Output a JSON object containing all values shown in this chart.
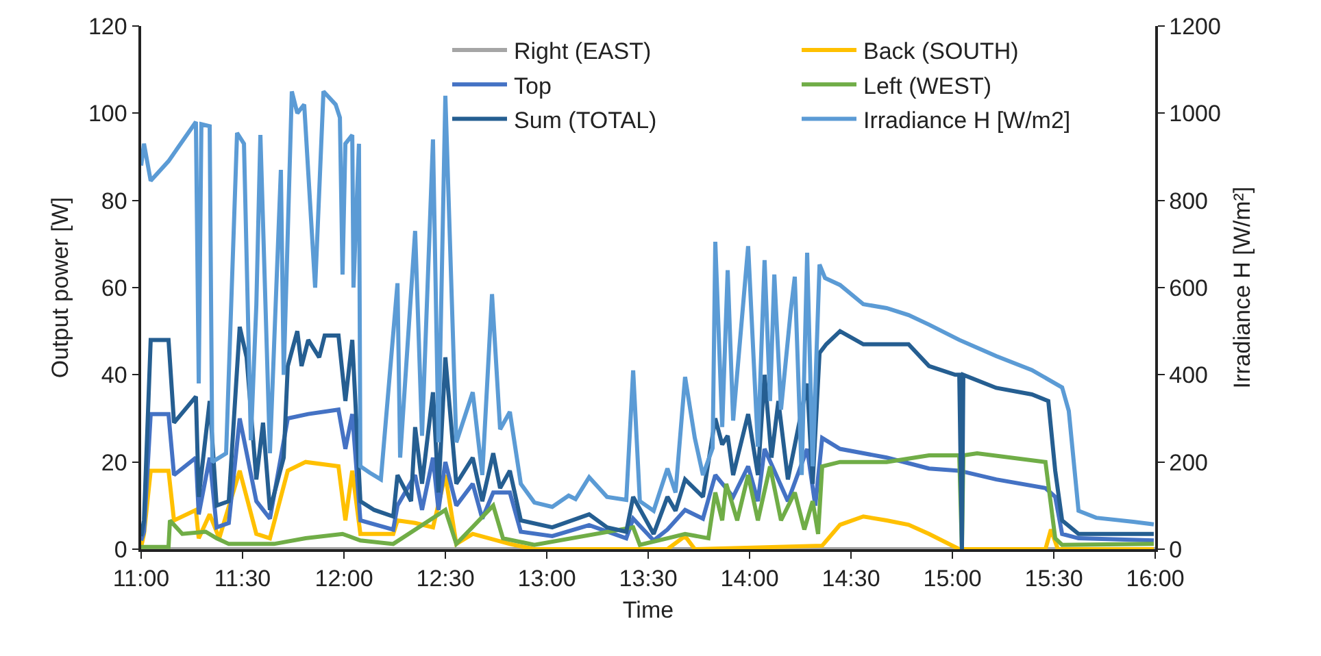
{
  "chart_data": {
    "type": "line",
    "xlabel": "Time",
    "ylabel": "Output power [W]",
    "y2label": "Irradiance H [W/m²]",
    "xlim": [
      11,
      16
    ],
    "xticks": [
      {
        "value": 11,
        "label": "11:00"
      },
      {
        "value": 11.5,
        "label": "11:30"
      },
      {
        "value": 12,
        "label": "12:00"
      },
      {
        "value": 12.5,
        "label": "12:30"
      },
      {
        "value": 13,
        "label": "13:00"
      },
      {
        "value": 13.5,
        "label": "13:30"
      },
      {
        "value": 14,
        "label": "14:00"
      },
      {
        "value": 14.5,
        "label": "14:30"
      },
      {
        "value": 15,
        "label": "15:00"
      },
      {
        "value": 15.5,
        "label": "15:30"
      },
      {
        "value": 16,
        "label": "16:00"
      }
    ],
    "ylim": [
      0,
      120
    ],
    "yticks": [
      0,
      20,
      40,
      60,
      80,
      100,
      120
    ],
    "y2lim": [
      0,
      1200
    ],
    "y2ticks": [
      0,
      200,
      400,
      600,
      800,
      1000,
      1200
    ],
    "grid": false,
    "legend": "top",
    "marker": "none",
    "line_style": "solid",
    "series": [
      {
        "name": "Right (EAST)",
        "color": "#a5a5a5",
        "x": [
          11,
          12,
          13,
          14,
          15,
          16
        ],
        "values": [
          0,
          0,
          0,
          0,
          0,
          0
        ]
      },
      {
        "name": "Back (SOUTH)",
        "color": "#ffc000",
        "x": [
          11.0,
          11.014,
          11.047,
          11.135,
          11.162,
          11.27,
          11.284,
          11.338,
          11.385,
          11.486,
          11.568,
          11.635,
          11.723,
          11.811,
          11.973,
          12.007,
          12.041,
          12.081,
          12.243,
          12.264,
          12.351,
          12.439,
          12.5,
          12.554,
          12.635,
          12.818,
          12.939,
          13.595,
          13.682,
          13.73,
          14.358,
          14.446,
          14.561,
          14.676,
          14.784,
          14.885,
          15.034,
          15.459,
          15.486,
          15.52,
          15.993
        ],
        "values": [
          0.5,
          3.5,
          18,
          18,
          6.6,
          9,
          2.5,
          8,
          2.5,
          18,
          3.5,
          2.5,
          18,
          20,
          19,
          6.6,
          18,
          3.5,
          3.5,
          6.6,
          6,
          5,
          17,
          1.2,
          3.5,
          1.2,
          0,
          0,
          3,
          0,
          0.8,
          5.6,
          7.5,
          6.6,
          5.6,
          3.5,
          0,
          0,
          4.5,
          0,
          0
        ]
      },
      {
        "name": "Top",
        "color": "#4472c4",
        "x": [
          11.0,
          11.014,
          11.047,
          11.135,
          11.162,
          11.27,
          11.284,
          11.338,
          11.372,
          11.432,
          11.486,
          11.568,
          11.635,
          11.723,
          11.824,
          11.973,
          12.007,
          12.041,
          12.081,
          12.243,
          12.264,
          12.351,
          12.385,
          12.439,
          12.466,
          12.5,
          12.554,
          12.635,
          12.682,
          12.736,
          12.818,
          12.872,
          13.027,
          13.209,
          13.392,
          13.426,
          13.527,
          13.595,
          13.682,
          13.77,
          13.831,
          13.919,
          13.993,
          14.041,
          14.074,
          14.189,
          14.284,
          14.324,
          14.358,
          14.446,
          14.676,
          14.885,
          15.034,
          15.216,
          15.459,
          15.507,
          15.541,
          15.622,
          15.993
        ],
        "values": [
          2,
          4,
          31,
          31,
          17,
          21,
          8,
          21,
          5,
          6,
          30,
          11,
          7,
          30,
          31,
          32,
          23,
          31,
          6.6,
          4.5,
          10,
          17,
          9,
          21,
          9,
          20,
          10,
          15,
          7,
          13,
          13,
          4,
          3,
          5.5,
          2.5,
          7,
          2,
          4.5,
          9,
          7,
          17,
          12,
          19,
          11,
          23,
          11,
          23,
          10,
          25.5,
          23,
          21,
          18.5,
          18,
          16,
          14,
          12,
          3.5,
          2.5,
          2
        ]
      },
      {
        "name": "Left (WEST)",
        "color": "#70ad47",
        "x": [
          11.0,
          11.135,
          11.142,
          11.203,
          11.318,
          11.372,
          11.432,
          11.655,
          11.811,
          11.993,
          12.081,
          12.243,
          12.5,
          12.554,
          12.736,
          12.784,
          12.939,
          13.426,
          13.459,
          13.595,
          13.682,
          13.797,
          13.831,
          13.865,
          13.885,
          13.939,
          13.993,
          14.041,
          14.101,
          14.155,
          14.223,
          14.27,
          14.311,
          14.338,
          14.358,
          14.446,
          14.676,
          14.885,
          15.034,
          15.047,
          15.054,
          15.122,
          15.459,
          15.507,
          15.541,
          15.993
        ],
        "values": [
          0.5,
          0.5,
          6.6,
          3.5,
          4,
          2.5,
          1.2,
          1.2,
          2.5,
          3.5,
          2,
          1.2,
          9,
          1.2,
          10,
          2.5,
          1,
          5,
          1,
          2.5,
          3.5,
          2.5,
          13,
          6.6,
          15,
          6.6,
          17,
          6.6,
          19,
          6.6,
          13,
          4.5,
          11,
          3.5,
          19,
          20,
          20,
          21.5,
          21.5,
          0,
          21.5,
          22,
          20,
          2.5,
          1,
          1.2
        ]
      },
      {
        "name": "Sum (TOTAL)",
        "color": "#255e91",
        "x": [
          11.0,
          11.014,
          11.047,
          11.135,
          11.162,
          11.27,
          11.284,
          11.338,
          11.372,
          11.432,
          11.486,
          11.52,
          11.568,
          11.601,
          11.635,
          11.703,
          11.723,
          11.77,
          11.791,
          11.824,
          11.878,
          11.905,
          11.973,
          12.007,
          12.041,
          12.081,
          12.149,
          12.243,
          12.264,
          12.331,
          12.351,
          12.385,
          12.439,
          12.466,
          12.5,
          12.554,
          12.635,
          12.682,
          12.736,
          12.77,
          12.818,
          12.872,
          13.027,
          13.209,
          13.297,
          13.392,
          13.426,
          13.527,
          13.595,
          13.635,
          13.682,
          13.77,
          13.831,
          13.865,
          13.892,
          13.919,
          13.993,
          14.041,
          14.074,
          14.108,
          14.142,
          14.189,
          14.284,
          14.311,
          14.345,
          14.378,
          14.446,
          14.561,
          14.676,
          14.784,
          14.885,
          15.014,
          15.034,
          15.047,
          15.054,
          15.216,
          15.392,
          15.473,
          15.507,
          15.541,
          15.622,
          15.993
        ],
        "values": [
          3,
          6.6,
          48,
          48,
          29,
          35,
          12,
          34,
          10,
          11,
          51,
          44,
          16,
          29,
          9,
          21,
          42,
          50,
          42,
          48,
          44,
          49,
          49,
          34,
          48,
          11,
          9,
          7.5,
          17,
          11,
          28,
          15,
          36,
          13,
          44,
          15,
          21,
          11,
          22,
          14,
          18,
          6.6,
          5,
          8,
          5,
          4,
          12,
          3.5,
          12,
          8.8,
          16,
          12,
          30,
          24,
          26,
          17,
          31,
          17,
          40,
          21,
          34,
          16,
          38,
          15,
          45,
          47,
          50,
          47,
          47,
          47,
          42,
          40,
          40,
          0,
          40,
          37,
          35.5,
          34,
          18,
          6.6,
          3.5,
          3.5
        ]
      },
      {
        "name": "Irradiance H [W/m2]",
        "color": "#5b9bd5",
        "axis": "y2",
        "x": [
          11.0,
          11.014,
          11.047,
          11.135,
          11.27,
          11.284,
          11.297,
          11.338,
          11.351,
          11.419,
          11.473,
          11.507,
          11.541,
          11.568,
          11.588,
          11.635,
          11.689,
          11.703,
          11.743,
          11.77,
          11.804,
          11.858,
          11.899,
          11.959,
          11.98,
          11.993,
          12.007,
          12.041,
          12.047,
          12.074,
          12.081,
          12.128,
          12.182,
          12.264,
          12.277,
          12.351,
          12.385,
          12.439,
          12.466,
          12.5,
          12.554,
          12.635,
          12.682,
          12.73,
          12.77,
          12.818,
          12.872,
          12.939,
          13.027,
          13.108,
          13.142,
          13.209,
          13.297,
          13.392,
          13.426,
          13.459,
          13.527,
          13.595,
          13.635,
          13.682,
          13.73,
          13.77,
          13.818,
          13.831,
          13.865,
          13.892,
          13.919,
          13.993,
          14.041,
          14.074,
          14.101,
          14.122,
          14.155,
          14.203,
          14.223,
          14.257,
          14.284,
          14.311,
          14.345,
          14.372,
          14.446,
          14.561,
          14.676,
          14.784,
          14.885,
          15.034,
          15.216,
          15.392,
          15.541,
          15.574,
          15.622,
          15.709,
          15.892,
          15.993
        ],
        "values": [
          880,
          930,
          845,
          890,
          980,
          380,
          975,
          970,
          200,
          220,
          955,
          930,
          250,
          560,
          950,
          220,
          870,
          400,
          1050,
          1000,
          1020,
          600,
          1050,
          1020,
          990,
          630,
          930,
          950,
          600,
          930,
          190,
          175,
          160,
          610,
          210,
          730,
          260,
          940,
          245,
          1040,
          245,
          360,
          170,
          585,
          275,
          315,
          150,
          107,
          97,
          123,
          115,
          165,
          120,
          113,
          410,
          110,
          88,
          185,
          130,
          395,
          255,
          170,
          232,
          705,
          280,
          640,
          295,
          695,
          235,
          663,
          340,
          630,
          320,
          547,
          625,
          170,
          680,
          190,
          653,
          622,
          606,
          562,
          553,
          537,
          515,
          480,
          443,
          411,
          371,
          317,
          88,
          72,
          63,
          57
        ]
      }
    ]
  }
}
